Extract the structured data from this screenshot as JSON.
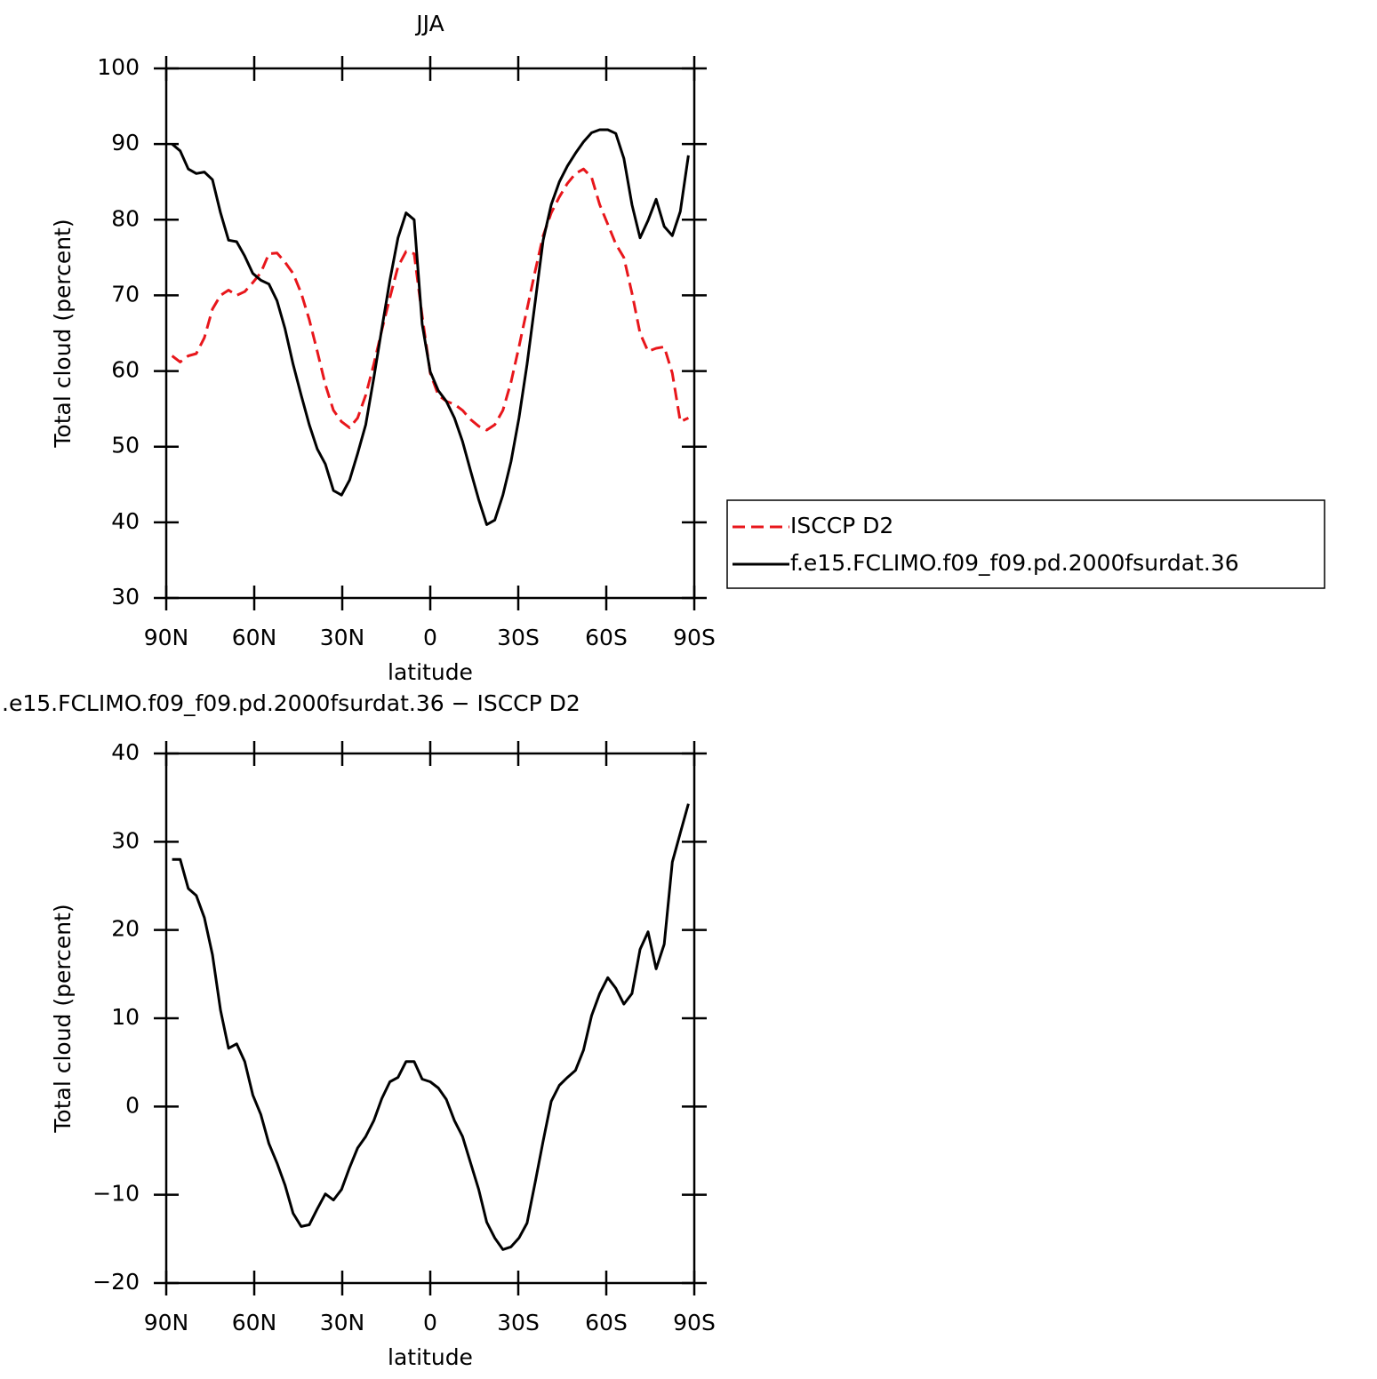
{
  "chart_data": [
    {
      "type": "line",
      "title": "JJA",
      "xlabel": "latitude",
      "ylabel": "Total cloud (percent)",
      "x": [
        88,
        85.25,
        82.5,
        79.75,
        77,
        74.25,
        71.5,
        68.75,
        66,
        63.25,
        60.5,
        57.75,
        55,
        52.25,
        49.5,
        46.75,
        44,
        41.25,
        38.5,
        35.75,
        33,
        30.25,
        27.5,
        24.75,
        22,
        19.25,
        16.5,
        13.75,
        11,
        8.25,
        5.5,
        2.75,
        0,
        -2.75,
        -5.5,
        -8.25,
        -11,
        -13.75,
        -16.5,
        -19.25,
        -22,
        -24.75,
        -27.5,
        -30.25,
        -33,
        -35.75,
        -38.5,
        -41.25,
        -44,
        -46.75,
        -49.5,
        -52.25,
        -55,
        -57.75,
        -60.5,
        -63.25,
        -66,
        -68.75,
        -71.5,
        -74.25,
        -77,
        -79.75,
        -82.5,
        -85.25,
        -88
      ],
      "series": [
        {
          "name": "ISCCP D2",
          "color": "#e8161b",
          "dash": "dashed",
          "values": [
            62,
            61.2,
            62,
            62.3,
            64.4,
            68.2,
            70,
            70.7,
            70,
            70.5,
            71.7,
            73,
            75.5,
            75.6,
            74.4,
            72.9,
            70.3,
            66.8,
            62.6,
            58.2,
            54.8,
            53.3,
            52.5,
            53.8,
            56.8,
            60.9,
            65.4,
            69.7,
            73.8,
            75.8,
            75.5,
            67.3,
            59.7,
            56.8,
            56,
            55.6,
            54.8,
            53.6,
            52.7,
            52.2,
            52.9,
            54.8,
            58.5,
            63.2,
            68.2,
            73.2,
            77.9,
            80.9,
            83,
            84.8,
            86.1,
            86.7,
            85.6,
            82,
            79.4,
            76.8,
            75,
            70.3,
            65,
            62.6,
            63,
            63.2,
            59.7,
            53.3,
            53.8
          ]
        },
        {
          "name": "f.e15.FCLIMO.f09_f09.pd.2000fsurdat.36",
          "color": "#000000",
          "dash": "solid",
          "values": [
            90,
            89.1,
            86.7,
            86.1,
            86.3,
            85.3,
            80.9,
            77.3,
            77.1,
            75.2,
            72.9,
            72,
            71.5,
            69.3,
            65.6,
            60.9,
            56.8,
            52.9,
            49.7,
            47.7,
            44.2,
            43.6,
            45.6,
            49.1,
            52.9,
            59.1,
            65.6,
            72,
            77.6,
            80.9,
            80,
            66.2,
            59.9,
            57.4,
            56,
            53.8,
            50.7,
            46.8,
            43,
            39.7,
            40.3,
            43.6,
            48,
            53.8,
            60.9,
            69.1,
            77.3,
            82,
            85,
            87.1,
            88.8,
            90.3,
            91.5,
            91.9,
            91.9,
            91.4,
            88.1,
            82,
            77.6,
            79.9,
            82.7,
            79.1,
            77.9,
            81.1,
            88.5
          ]
        }
      ],
      "xlim": [
        90,
        -90
      ],
      "xticks": [
        {
          "value": 90,
          "label": "90N"
        },
        {
          "value": 60,
          "label": "60N"
        },
        {
          "value": 30,
          "label": "30N"
        },
        0,
        {
          "value": -30,
          "label": "30S"
        },
        {
          "value": -60,
          "label": "60S"
        },
        {
          "value": -90,
          "label": "90S"
        }
      ],
      "ylim": [
        30,
        100
      ],
      "yticks": [
        30,
        40,
        50,
        60,
        70,
        80,
        90,
        100
      ],
      "legend": "outside-right"
    },
    {
      "type": "line",
      "title": ".e15.FCLIMO.f09_f09.pd.2000fsurdat.36 − ISCCP D2",
      "xlabel": "latitude",
      "ylabel": "Total cloud (percent)",
      "x": [
        88,
        85.25,
        82.5,
        79.75,
        77,
        74.25,
        71.5,
        68.75,
        66,
        63.25,
        60.5,
        57.75,
        55,
        52.25,
        49.5,
        46.75,
        44,
        41.25,
        38.5,
        35.75,
        33,
        30.25,
        27.5,
        24.75,
        22,
        19.25,
        16.5,
        13.75,
        11,
        8.25,
        5.5,
        2.75,
        0,
        -2.75,
        -5.5,
        -8.25,
        -11,
        -13.75,
        -16.5,
        -19.25,
        -22,
        -24.75,
        -27.5,
        -30.25,
        -33,
        -35.75,
        -38.5,
        -41.25,
        -44,
        -46.75,
        -49.5,
        -52.25,
        -55,
        -57.75,
        -60.5,
        -63.25,
        -66,
        -68.75,
        -71.5,
        -74.25,
        -77,
        -79.75,
        -82.5,
        -85.25,
        -88
      ],
      "color": "#000000",
      "values": [
        28,
        28,
        24.7,
        23.9,
        21.4,
        17.2,
        10.9,
        6.6,
        7.1,
        5.1,
        1.3,
        -0.9,
        -4.2,
        -6.4,
        -8.9,
        -12.1,
        -13.6,
        -13.4,
        -11.6,
        -9.9,
        -10.6,
        -9.4,
        -6.9,
        -4.7,
        -3.4,
        -1.6,
        0.9,
        2.8,
        3.3,
        5.1,
        5.1,
        3.1,
        2.8,
        2.1,
        0.8,
        -1.6,
        -3.4,
        -6.4,
        -9.4,
        -13.1,
        -14.9,
        -16.2,
        -15.9,
        -14.9,
        -13.2,
        -8.6,
        -3.9,
        0.6,
        2.4,
        3.3,
        4.1,
        6.4,
        10.3,
        12.8,
        14.6,
        13.4,
        11.6,
        12.8,
        17.8,
        19.8,
        15.6,
        18.4,
        27.7,
        31,
        34.3
      ],
      "xlim": [
        90,
        -90
      ],
      "xticks": [
        {
          "value": 90,
          "label": "90N"
        },
        {
          "value": 60,
          "label": "60N"
        },
        {
          "value": 30,
          "label": "30N"
        },
        0,
        {
          "value": -30,
          "label": "30S"
        },
        {
          "value": -60,
          "label": "60S"
        },
        {
          "value": -90,
          "label": "90S"
        }
      ],
      "ylim": [
        -20,
        40
      ],
      "yticks": [
        {
          "value": -20,
          "label": "−20"
        },
        {
          "value": -10,
          "label": "−10"
        },
        0,
        10,
        20,
        30,
        40
      ]
    }
  ]
}
